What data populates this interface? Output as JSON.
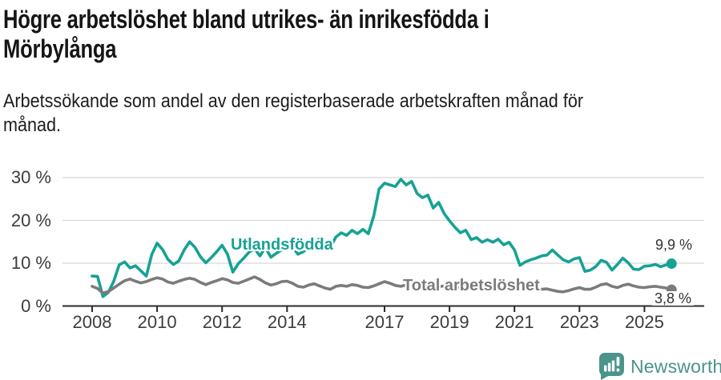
{
  "header": {
    "title_lines": [
      "Högre arbetslöshet bland utrikes- än inrikesfödda i",
      "Mörbylånga"
    ],
    "subtitle_lines": [
      "Arbetssökande som andel av den registerbaserade arbetskraften månad för",
      "månad."
    ]
  },
  "footer": {
    "brand": "Newsworthy",
    "logo_icon": "newsworthy-speech-bubble-barchart-icon"
  },
  "colors": {
    "foreign_born": "#16A294",
    "total": "#7B7B7B",
    "grid": "#D8D8D8",
    "axis": "#2B2B2B",
    "tick_text": "#3c3c3c",
    "brand": "#4A948C"
  },
  "chart_data": {
    "type": "line",
    "title": "Högre arbetslöshet bland utrikes- än inrikesfödda i Mörbylånga",
    "subtitle": "Arbetssökande som andel av den registerbaserade arbetskraften månad för månad.",
    "x_unit": "decimal_year",
    "x_start": 2008.0,
    "x_step": 0.16667,
    "xlim": [
      2007.1,
      2026.8
    ],
    "ylim": [
      0,
      31
    ],
    "grid": "horizontal",
    "x_ticks": [
      2008,
      2010,
      2012,
      2014,
      2017,
      2019,
      2021,
      2023,
      2025
    ],
    "x_tick_labels": [
      "2008",
      "2010",
      "2012",
      "2014",
      "2017",
      "2019",
      "2021",
      "2023",
      "2025"
    ],
    "y_ticks": [
      0,
      10,
      20,
      30
    ],
    "y_tick_labels": [
      "0 %",
      "10 %",
      "20 %",
      "30 %"
    ],
    "series": [
      {
        "name": "Utlandsfödda",
        "color": "#16A294",
        "end_label": "9,9 %",
        "end_value": 9.9,
        "values": [
          7.0,
          6.9,
          2.2,
          3.2,
          5.8,
          9.6,
          10.3,
          8.9,
          9.4,
          8.2,
          7.0,
          12.0,
          14.7,
          13.2,
          10.9,
          9.7,
          10.5,
          13.1,
          15.0,
          13.7,
          11.5,
          10.1,
          11.3,
          12.7,
          14.2,
          12.1,
          7.9,
          9.9,
          11.2,
          12.6,
          13.4,
          11.7,
          13.7,
          11.4,
          12.3,
          13.1,
          14.9,
          13.8,
          12.1,
          12.7,
          13.6,
          14.7,
          15.7,
          14.1,
          13.7,
          16.1,
          17.1,
          16.5,
          17.7,
          16.9,
          17.9,
          16.9,
          21.0,
          27.3,
          28.7,
          28.3,
          27.9,
          29.6,
          28.3,
          29.1,
          26.3,
          25.3,
          25.9,
          22.9,
          24.2,
          21.6,
          19.9,
          18.4,
          17.1,
          17.7,
          15.5,
          16.0,
          14.9,
          15.5,
          14.9,
          15.6,
          14.3,
          14.9,
          13.1,
          9.5,
          10.3,
          10.8,
          11.2,
          11.7,
          11.9,
          13.1,
          11.9,
          10.8,
          10.3,
          11.0,
          11.3,
          8.1,
          8.4,
          9.2,
          10.7,
          10.2,
          8.4,
          9.7,
          11.2,
          10.1,
          8.6,
          8.5,
          9.3,
          9.4,
          9.7,
          9.2,
          9.6,
          9.9
        ]
      },
      {
        "name": "Total arbetslöshet",
        "color": "#7B7B7B",
        "end_label": "3,8 %",
        "end_value": 3.8,
        "values": [
          4.6,
          4.1,
          3.0,
          3.4,
          4.2,
          5.1,
          5.9,
          6.3,
          5.8,
          5.4,
          5.7,
          6.2,
          6.6,
          6.3,
          5.6,
          5.3,
          5.8,
          6.2,
          6.5,
          6.2,
          5.5,
          5.0,
          5.5,
          5.9,
          6.4,
          6.1,
          5.5,
          5.3,
          5.8,
          6.3,
          6.8,
          6.2,
          5.4,
          4.9,
          5.2,
          5.7,
          5.8,
          5.3,
          4.6,
          4.4,
          4.9,
          5.2,
          4.7,
          4.2,
          3.9,
          4.6,
          4.8,
          4.6,
          5.0,
          4.8,
          4.4,
          4.3,
          4.7,
          5.2,
          5.7,
          5.3,
          4.8,
          4.6,
          4.9,
          5.1,
          5.2,
          4.9,
          4.4,
          4.3,
          4.5,
          4.7,
          4.9,
          4.6,
          4.3,
          4.4,
          4.5,
          4.7,
          4.9,
          5.1,
          5.3,
          5.2,
          5.0,
          4.8,
          4.9,
          4.6,
          4.2,
          4.0,
          3.8,
          3.9,
          4.0,
          3.7,
          3.4,
          3.3,
          3.6,
          4.0,
          4.3,
          3.9,
          3.9,
          4.4,
          5.0,
          5.2,
          4.6,
          4.3,
          4.8,
          5.1,
          4.7,
          4.4,
          4.3,
          4.5,
          4.6,
          4.4,
          4.2,
          3.8
        ]
      }
    ],
    "legend_position": "inline-labels"
  }
}
